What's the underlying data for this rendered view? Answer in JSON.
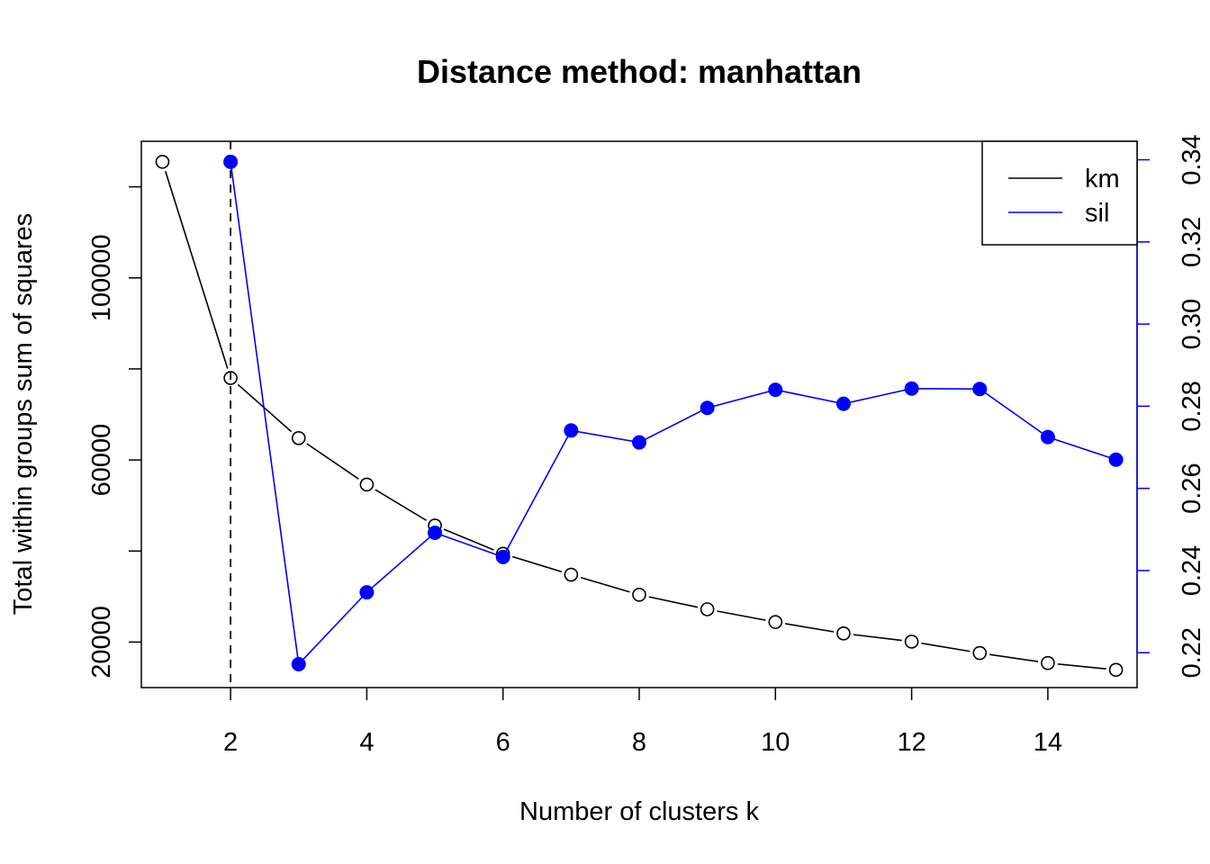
{
  "chart_data": {
    "type": "line",
    "title": "Distance method: manhattan",
    "xlabel": "Number of clusters k",
    "ylabel_left": "Total within groups sum of squares",
    "ylabel_right": "",
    "x": [
      1,
      2,
      3,
      4,
      5,
      6,
      7,
      8,
      9,
      10,
      11,
      12,
      13,
      14,
      15
    ],
    "xlim": [
      0.69,
      15.31
    ],
    "x_ticks": [
      2,
      4,
      6,
      8,
      10,
      12,
      14
    ],
    "ylim_left": [
      10000,
      130000
    ],
    "y_ticks_left": [
      20000,
      40000,
      60000,
      80000,
      100000,
      120000
    ],
    "y_tick_labels_left": [
      "20000",
      "",
      "60000",
      "",
      "100000",
      ""
    ],
    "ylim_right": [
      0.2115,
      0.3445
    ],
    "y_ticks_right": [
      0.22,
      0.24,
      0.26,
      0.28,
      0.3,
      0.32,
      0.34
    ],
    "y_tick_labels_right": [
      "0.22",
      "0.24",
      "0.26",
      "0.28",
      "0.30",
      "0.32",
      "0.34"
    ],
    "series": [
      {
        "name": "km",
        "axis": "left",
        "color": "#000000",
        "marker": "open-circle",
        "values": [
          125500,
          78000,
          64800,
          54600,
          45600,
          39400,
          34800,
          30400,
          27200,
          24400,
          21900,
          20100,
          17600,
          15400,
          13900
        ]
      },
      {
        "name": "sil",
        "axis": "right",
        "color": "#0000ff",
        "marker": "filled-circle",
        "x": [
          2,
          3,
          4,
          5,
          6,
          7,
          8,
          9,
          10,
          11,
          12,
          13,
          14,
          15
        ],
        "values": [
          0.3395,
          0.2172,
          0.2347,
          0.2492,
          0.2433,
          0.2741,
          0.2712,
          0.2796,
          0.284,
          0.2806,
          0.2843,
          0.2842,
          0.2725,
          0.267
        ]
      }
    ],
    "vline": {
      "x": 2,
      "style": "dashed",
      "color": "#000000"
    },
    "legend": {
      "position": "top-right",
      "entries": [
        {
          "label": "km",
          "color": "#000000"
        },
        {
          "label": "sil",
          "color": "#0000ff"
        }
      ]
    },
    "grid": false
  }
}
